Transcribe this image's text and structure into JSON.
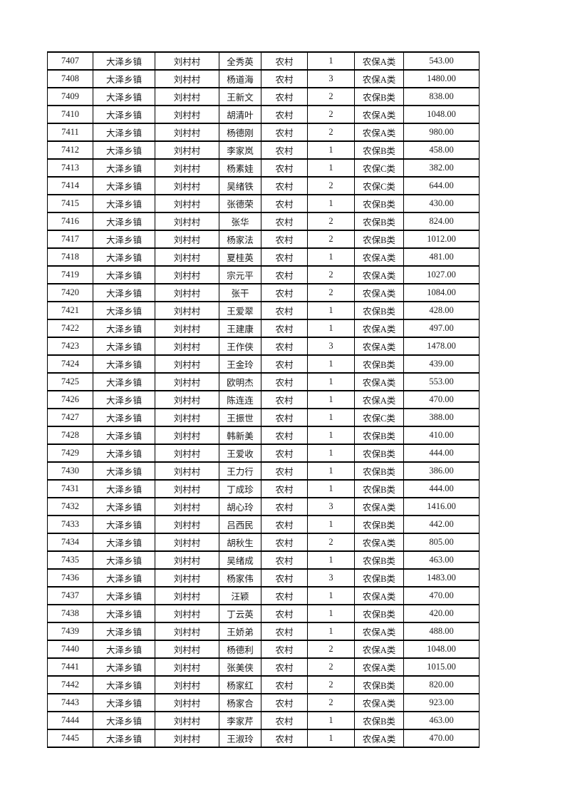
{
  "page": {
    "background_color": "#ffffff",
    "text_color": "#1a1a1a",
    "grid_border_color": "#000000"
  },
  "table": {
    "rows": [
      [
        "7407",
        "大泽乡镇",
        "刘村村",
        "全秀英",
        "农村",
        "1",
        "农保A类",
        "543.00"
      ],
      [
        "7408",
        "大泽乡镇",
        "刘村村",
        "杨道海",
        "农村",
        "3",
        "农保A类",
        "1480.00"
      ],
      [
        "7409",
        "大泽乡镇",
        "刘村村",
        "王新文",
        "农村",
        "2",
        "农保B类",
        "838.00"
      ],
      [
        "7410",
        "大泽乡镇",
        "刘村村",
        "胡清叶",
        "农村",
        "2",
        "农保A类",
        "1048.00"
      ],
      [
        "7411",
        "大泽乡镇",
        "刘村村",
        "杨德刚",
        "农村",
        "2",
        "农保A类",
        "980.00"
      ],
      [
        "7412",
        "大泽乡镇",
        "刘村村",
        "李家岚",
        "农村",
        "1",
        "农保B类",
        "458.00"
      ],
      [
        "7413",
        "大泽乡镇",
        "刘村村",
        "杨素娃",
        "农村",
        "1",
        "农保C类",
        "382.00"
      ],
      [
        "7414",
        "大泽乡镇",
        "刘村村",
        "吴绪铁",
        "农村",
        "2",
        "农保C类",
        "644.00"
      ],
      [
        "7415",
        "大泽乡镇",
        "刘村村",
        "张德荣",
        "农村",
        "1",
        "农保B类",
        "430.00"
      ],
      [
        "7416",
        "大泽乡镇",
        "刘村村",
        "张华",
        "农村",
        "2",
        "农保B类",
        "824.00"
      ],
      [
        "7417",
        "大泽乡镇",
        "刘村村",
        "杨家法",
        "农村",
        "2",
        "农保B类",
        "1012.00"
      ],
      [
        "7418",
        "大泽乡镇",
        "刘村村",
        "夏桂英",
        "农村",
        "1",
        "农保A类",
        "481.00"
      ],
      [
        "7419",
        "大泽乡镇",
        "刘村村",
        "宗元平",
        "农村",
        "2",
        "农保A类",
        "1027.00"
      ],
      [
        "7420",
        "大泽乡镇",
        "刘村村",
        "张干",
        "农村",
        "2",
        "农保A类",
        "1084.00"
      ],
      [
        "7421",
        "大泽乡镇",
        "刘村村",
        "王爱翠",
        "农村",
        "1",
        "农保B类",
        "428.00"
      ],
      [
        "7422",
        "大泽乡镇",
        "刘村村",
        "王建康",
        "农村",
        "1",
        "农保A类",
        "497.00"
      ],
      [
        "7423",
        "大泽乡镇",
        "刘村村",
        "王作侠",
        "农村",
        "3",
        "农保A类",
        "1478.00"
      ],
      [
        "7424",
        "大泽乡镇",
        "刘村村",
        "王金玲",
        "农村",
        "1",
        "农保B类",
        "439.00"
      ],
      [
        "7425",
        "大泽乡镇",
        "刘村村",
        "欧明杰",
        "农村",
        "1",
        "农保A类",
        "553.00"
      ],
      [
        "7426",
        "大泽乡镇",
        "刘村村",
        "陈连连",
        "农村",
        "1",
        "农保A类",
        "470.00"
      ],
      [
        "7427",
        "大泽乡镇",
        "刘村村",
        "王振世",
        "农村",
        "1",
        "农保C类",
        "388.00"
      ],
      [
        "7428",
        "大泽乡镇",
        "刘村村",
        "韩新美",
        "农村",
        "1",
        "农保B类",
        "410.00"
      ],
      [
        "7429",
        "大泽乡镇",
        "刘村村",
        "王爱收",
        "农村",
        "1",
        "农保B类",
        "444.00"
      ],
      [
        "7430",
        "大泽乡镇",
        "刘村村",
        "王力行",
        "农村",
        "1",
        "农保B类",
        "386.00"
      ],
      [
        "7431",
        "大泽乡镇",
        "刘村村",
        "丁成珍",
        "农村",
        "1",
        "农保B类",
        "444.00"
      ],
      [
        "7432",
        "大泽乡镇",
        "刘村村",
        "胡心玲",
        "农村",
        "3",
        "农保A类",
        "1416.00"
      ],
      [
        "7433",
        "大泽乡镇",
        "刘村村",
        "吕西民",
        "农村",
        "1",
        "农保B类",
        "442.00"
      ],
      [
        "7434",
        "大泽乡镇",
        "刘村村",
        "胡秋生",
        "农村",
        "2",
        "农保A类",
        "805.00"
      ],
      [
        "7435",
        "大泽乡镇",
        "刘村村",
        "吴绪成",
        "农村",
        "1",
        "农保B类",
        "463.00"
      ],
      [
        "7436",
        "大泽乡镇",
        "刘村村",
        "杨家伟",
        "农村",
        "3",
        "农保B类",
        "1483.00"
      ],
      [
        "7437",
        "大泽乡镇",
        "刘村村",
        "汪颖",
        "农村",
        "1",
        "农保A类",
        "470.00"
      ],
      [
        "7438",
        "大泽乡镇",
        "刘村村",
        "丁云英",
        "农村",
        "1",
        "农保B类",
        "420.00"
      ],
      [
        "7439",
        "大泽乡镇",
        "刘村村",
        "王娇弟",
        "农村",
        "1",
        "农保A类",
        "488.00"
      ],
      [
        "7440",
        "大泽乡镇",
        "刘村村",
        "杨德利",
        "农村",
        "2",
        "农保A类",
        "1048.00"
      ],
      [
        "7441",
        "大泽乡镇",
        "刘村村",
        "张美侠",
        "农村",
        "2",
        "农保A类",
        "1015.00"
      ],
      [
        "7442",
        "大泽乡镇",
        "刘村村",
        "杨家红",
        "农村",
        "2",
        "农保B类",
        "820.00"
      ],
      [
        "7443",
        "大泽乡镇",
        "刘村村",
        "杨家合",
        "农村",
        "2",
        "农保A类",
        "923.00"
      ],
      [
        "7444",
        "大泽乡镇",
        "刘村村",
        "李家芹",
        "农村",
        "1",
        "农保B类",
        "463.00"
      ],
      [
        "7445",
        "大泽乡镇",
        "刘村村",
        "王淑玲",
        "农村",
        "1",
        "农保A类",
        "470.00"
      ]
    ]
  }
}
